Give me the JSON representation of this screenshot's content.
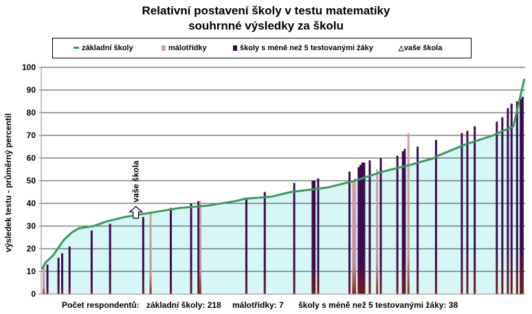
{
  "header": {
    "title_line1": "Relativní postavení školy v testu matematiky",
    "title_line2": "souhrnné výsledky za školu"
  },
  "legend": {
    "basic": "základní školy",
    "small": "málotřídky",
    "few": "školy s méně než 5 testovanými žáky",
    "yours": "vaše škola"
  },
  "colors": {
    "line": "#3a9a5c",
    "fill": "#d6f7f7",
    "small_bar": "#d8a0a0",
    "few_bar": "#3d0a50",
    "axis": "#888888"
  },
  "footer": {
    "prefix": "Počet respondentů:",
    "basic": "základní školy: 218",
    "small": "málotřídky: 7",
    "few": "školy s méně než 5 testovanými žáky: 38"
  },
  "chart_data": {
    "type": "area",
    "title": "Relativní postavení školy v testu matematiky",
    "subtitle": "souhrnné výsledky za školu",
    "ylabel": "výsledek testu - průměrný percentil",
    "xlabel": "",
    "ylim": [
      0,
      100
    ],
    "yticks": [
      0,
      10,
      20,
      30,
      40,
      50,
      60,
      70,
      80,
      90,
      100
    ],
    "grid": true,
    "legend_position": "top",
    "respondents": {
      "basic": 218,
      "small": 7,
      "few": 38
    },
    "curve": {
      "x": [
        0,
        2,
        6,
        12,
        16,
        20,
        28,
        35,
        45,
        60,
        75,
        90,
        105,
        110,
        125,
        135,
        145,
        155,
        165,
        170,
        185,
        200,
        213,
        215,
        230,
        245,
        256,
        262
      ],
      "y": [
        11,
        14,
        17,
        24,
        27,
        29,
        30,
        32,
        34,
        36,
        38,
        39,
        41,
        42,
        43,
        45,
        46,
        47,
        49,
        50,
        54,
        57,
        60,
        61,
        66,
        70,
        74,
        95
      ]
    },
    "your_school": {
      "x": 51,
      "y": 35,
      "label": "vaše škola"
    },
    "bars_small": {
      "x": [
        1,
        59,
        86,
        169,
        170,
        182,
        199
      ],
      "y": [
        12,
        36,
        41,
        50,
        51,
        55,
        71
      ]
    },
    "bars_few": {
      "x": [
        3,
        9,
        11,
        15,
        27,
        37,
        55,
        70,
        81,
        85,
        111,
        121,
        137,
        147,
        148,
        150,
        167,
        172,
        173,
        174,
        175,
        178,
        184,
        193,
        196,
        197,
        204,
        214,
        228,
        231,
        235,
        247,
        250,
        253,
        255,
        258,
        260,
        261
      ],
      "y": [
        13,
        16,
        18,
        21,
        28,
        31,
        34,
        38,
        40,
        41,
        42,
        45,
        49,
        50,
        50,
        51,
        54,
        56,
        57,
        58,
        58,
        59,
        60,
        61,
        63,
        64,
        65,
        68,
        71,
        72,
        74,
        76,
        78,
        82,
        84,
        85,
        86,
        87
      ]
    }
  }
}
